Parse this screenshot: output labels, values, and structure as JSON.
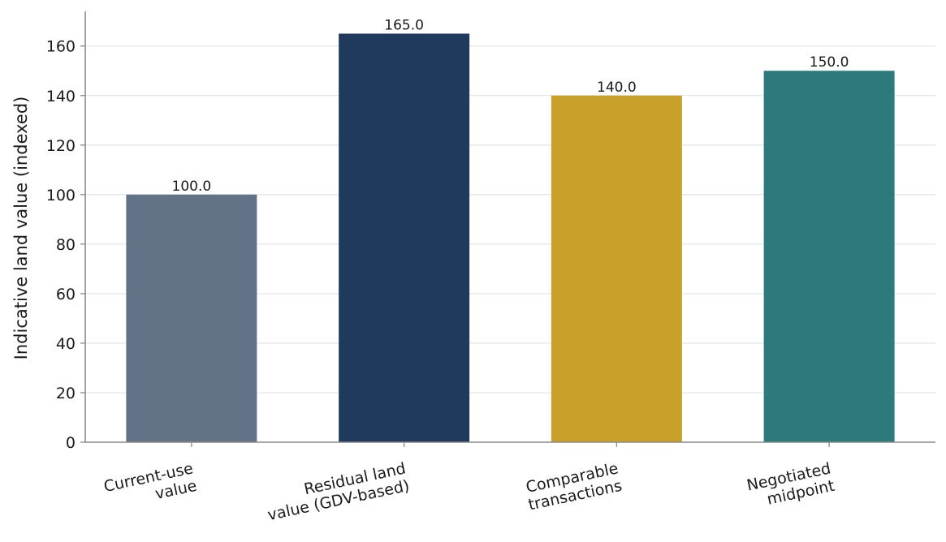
{
  "chart_data": {
    "type": "bar",
    "categories": [
      [
        "Current-use",
        "value"
      ],
      [
        "Residual land",
        "value (GDV-based)"
      ],
      [
        "Comparable",
        "transactions"
      ],
      [
        "Negotiated",
        "midpoint"
      ]
    ],
    "values": [
      100.0,
      165.0,
      140.0,
      150.0
    ],
    "data_labels": [
      "100.0",
      "165.0",
      "140.0",
      "150.0"
    ],
    "colors": [
      "#627387",
      "#1f3a5c",
      "#c9a12a",
      "#2c7a7b"
    ],
    "title": "",
    "xlabel": "",
    "ylabel": "Indicative land value (indexed)",
    "ylim": [
      0,
      174
    ],
    "yticks": [
      0,
      20,
      40,
      60,
      80,
      100,
      120,
      140,
      160
    ],
    "grid": "horizontal",
    "axis_color": "#8a8a8a",
    "grid_color": "#e3e6ea"
  }
}
